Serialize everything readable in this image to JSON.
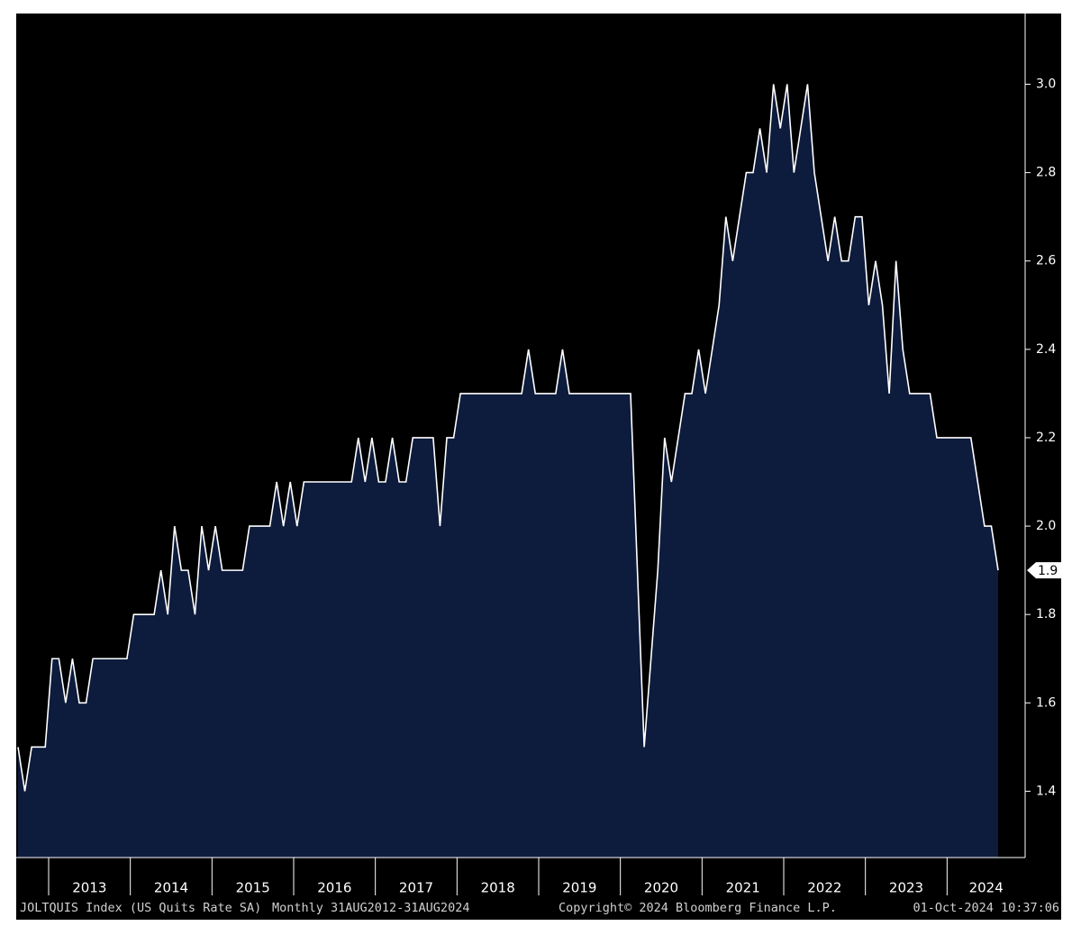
{
  "chart_data": {
    "type": "area",
    "title": "JOLTQUIS Index (US Quits Rate SA)",
    "subtitle": "Monthly 31AUG2012-31AUG2024",
    "copyright": "Copyright© 2024 Bloomberg Finance L.P.",
    "timestamp": "01-Oct-2024 10:37:06",
    "x": [
      null,
      null,
      null,
      null,
      null,
      "2013",
      "2013",
      "2013",
      "2013",
      "2013",
      "2013",
      "2013",
      "2013",
      "2013",
      "2013",
      "2013",
      "2013",
      "2014",
      "2014",
      "2014",
      "2014",
      "2014",
      "2014",
      "2014",
      "2014",
      "2014",
      "2014",
      "2014",
      "2014",
      "2015",
      "2015",
      "2015",
      "2015",
      "2015",
      "2015",
      "2015",
      "2015",
      "2015",
      "2015",
      "2015",
      "2015",
      "2016",
      "2016",
      "2016",
      "2016",
      "2016",
      "2016",
      "2016",
      "2016",
      "2016",
      "2016",
      "2016",
      "2016",
      "2017",
      "2017",
      "2017",
      "2017",
      "2017",
      "2017",
      "2017",
      "2017",
      "2017",
      "2017",
      "2017",
      "2017",
      "2018",
      "2018",
      "2018",
      "2018",
      "2018",
      "2018",
      "2018",
      "2018",
      "2018",
      "2018",
      "2018",
      "2018",
      "2019",
      "2019",
      "2019",
      "2019",
      "2019",
      "2019",
      "2019",
      "2019",
      "2019",
      "2019",
      "2019",
      "2019",
      "2020",
      "2020",
      "2020",
      "2020",
      "2020",
      "2020",
      "2020",
      "2020",
      "2020",
      "2020",
      "2020",
      "2020",
      "2021",
      "2021",
      "2021",
      "2021",
      "2021",
      "2021",
      "2021",
      "2021",
      "2021",
      "2021",
      "2021",
      "2021",
      "2022",
      "2022",
      "2022",
      "2022",
      "2022",
      "2022",
      "2022",
      "2022",
      "2022",
      "2022",
      "2022",
      "2022",
      "2023",
      "2023",
      "2023",
      "2023",
      "2023",
      "2023",
      "2023",
      "2023",
      "2023",
      "2023",
      "2023",
      "2023",
      "2024",
      "2024",
      "2024",
      "2024",
      "2024",
      "2024",
      "2024",
      "2024"
    ],
    "values": [
      1.5,
      1.4,
      1.5,
      1.5,
      1.5,
      1.7,
      1.7,
      1.6,
      1.7,
      1.6,
      1.6,
      1.7,
      1.7,
      1.7,
      1.7,
      1.7,
      1.7,
      1.8,
      1.8,
      1.8,
      1.8,
      1.9,
      1.8,
      2.0,
      1.9,
      1.9,
      1.8,
      2.0,
      1.9,
      2.0,
      1.9,
      1.9,
      1.9,
      1.9,
      2.0,
      2.0,
      2.0,
      2.0,
      2.1,
      2.0,
      2.1,
      2.0,
      2.1,
      2.1,
      2.1,
      2.1,
      2.1,
      2.1,
      2.1,
      2.1,
      2.2,
      2.1,
      2.2,
      2.1,
      2.1,
      2.2,
      2.1,
      2.1,
      2.2,
      2.2,
      2.2,
      2.2,
      2.0,
      2.2,
      2.2,
      2.3,
      2.3,
      2.3,
      2.3,
      2.3,
      2.3,
      2.3,
      2.3,
      2.3,
      2.3,
      2.4,
      2.3,
      2.3,
      2.3,
      2.3,
      2.4,
      2.3,
      2.3,
      2.3,
      2.3,
      2.3,
      2.3,
      2.3,
      2.3,
      2.3,
      2.3,
      1.9,
      1.5,
      1.7,
      1.9,
      2.2,
      2.1,
      2.2,
      2.3,
      2.3,
      2.4,
      2.3,
      2.4,
      2.5,
      2.7,
      2.6,
      2.7,
      2.8,
      2.8,
      2.9,
      2.8,
      3.0,
      2.9,
      3.0,
      2.8,
      2.9,
      3.0,
      2.8,
      2.7,
      2.6,
      2.7,
      2.6,
      2.6,
      2.7,
      2.7,
      2.5,
      2.6,
      2.5,
      2.3,
      2.6,
      2.4,
      2.3,
      2.3,
      2.3,
      2.3,
      2.2,
      2.2,
      2.2,
      2.2,
      2.2,
      2.2,
      2.1,
      2.0,
      2.0,
      1.9
    ],
    "color": "#ffffff",
    "fill": "#0d1b3d",
    "ylim": [
      1.25,
      3.16
    ],
    "yticks": [
      1.4,
      1.6,
      1.8,
      {
        "value": 2,
        "label": "2.0"
      },
      2.2,
      2.4,
      2.6,
      2.8,
      {
        "value": 3,
        "label": "3.0"
      }
    ],
    "grid": false
  }
}
